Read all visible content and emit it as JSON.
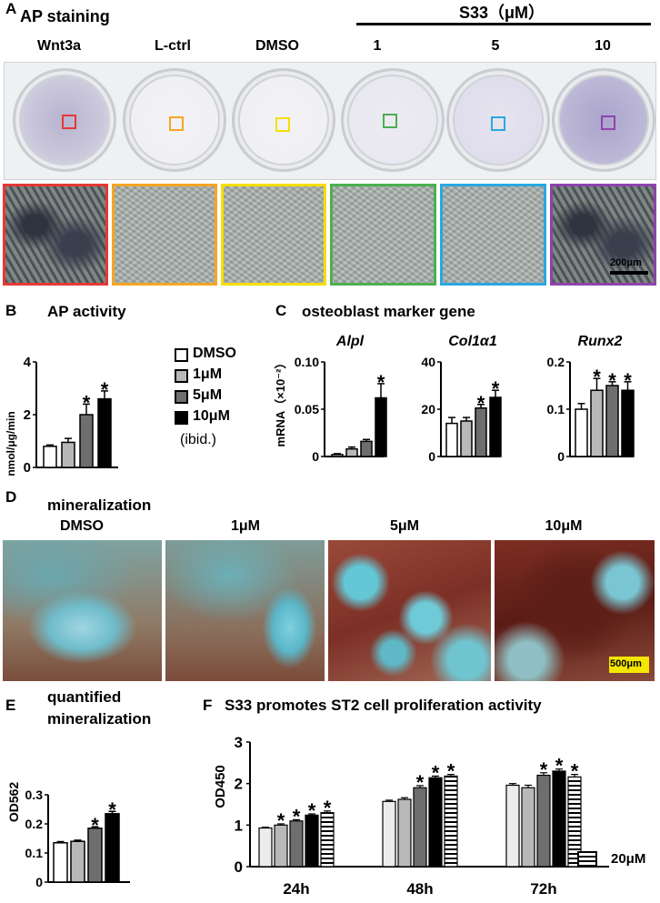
{
  "panelA": {
    "letter": "A",
    "title": "AP staining",
    "s33_label": "S33（μM）",
    "columns": [
      "Wnt3a",
      "L-ctrl",
      "DMSO",
      "1",
      "5",
      "10"
    ],
    "scale": "200μm",
    "roi_colors": [
      "#e53935",
      "#f5a623",
      "#f4e000",
      "#4caf50",
      "#29a8e0",
      "#8e44ad"
    ]
  },
  "panelB": {
    "letter": "B",
    "title": "AP activity",
    "ylabel": "nmol/μg/min",
    "legend": [
      "DMSO",
      "1μM",
      "5μM",
      "10μM",
      "(ibid.)"
    ]
  },
  "panelC": {
    "letter": "C",
    "title": "osteoblast marker gene",
    "ylabel": "mRNA（×10⁻²）",
    "genes": [
      "Alpl",
      "Col1α1",
      "Runx2"
    ]
  },
  "panelD": {
    "letter": "D",
    "title": "mineralization",
    "columns": [
      "DMSO",
      "1μM",
      "5μM",
      "10μM"
    ],
    "scale": "500μm"
  },
  "panelE": {
    "letter": "E",
    "title_line1": "quantified",
    "title_line2": "mineralization",
    "ylabel": "OD562"
  },
  "panelF": {
    "letter": "F",
    "title": "S33 promotes ST2 cell proliferation activity",
    "ylabel": "OD450",
    "legend_extra": "20μM"
  },
  "star": "*",
  "chart_data": [
    {
      "type": "bar",
      "id": "B",
      "categories": [
        "DMSO",
        "1μM",
        "5μM",
        "10μM"
      ],
      "values": [
        0.8,
        0.95,
        2.0,
        2.6
      ],
      "errors": [
        0.05,
        0.15,
        0.4,
        0.3
      ],
      "significant": [
        false,
        false,
        true,
        true
      ],
      "ylim": [
        0,
        4
      ],
      "yticks": [
        "0",
        "2",
        "4"
      ]
    },
    {
      "type": "bar",
      "id": "C-Alpl",
      "categories": [
        "DMSO",
        "1μM",
        "5μM",
        "10μM"
      ],
      "values": [
        0.002,
        0.008,
        0.016,
        0.062
      ],
      "errors": [
        0.001,
        0.002,
        0.002,
        0.015
      ],
      "significant": [
        false,
        false,
        false,
        true
      ],
      "ylim": [
        0,
        0.1
      ],
      "yticks": [
        "0",
        "0.05",
        "0.10"
      ]
    },
    {
      "type": "bar",
      "id": "C-Col1a1",
      "categories": [
        "DMSO",
        "1μM",
        "5μM",
        "10μM"
      ],
      "values": [
        14,
        15,
        20.5,
        25
      ],
      "errors": [
        2.5,
        1.5,
        1.5,
        3
      ],
      "significant": [
        false,
        false,
        true,
        true
      ],
      "ylim": [
        0,
        40
      ],
      "yticks": [
        "0",
        "20",
        "40"
      ]
    },
    {
      "type": "bar",
      "id": "C-Runx2",
      "categories": [
        "DMSO",
        "1μM",
        "5μM",
        "10μM"
      ],
      "values": [
        0.1,
        0.14,
        0.15,
        0.14
      ],
      "errors": [
        0.012,
        0.025,
        0.008,
        0.018
      ],
      "significant": [
        false,
        true,
        true,
        true
      ],
      "ylim": [
        0,
        0.2
      ],
      "yticks": [
        "0",
        "0.1",
        "0.2"
      ]
    },
    {
      "type": "bar",
      "id": "E",
      "categories": [
        "DMSO",
        "1μM",
        "5μM",
        "10μM"
      ],
      "values": [
        0.135,
        0.14,
        0.185,
        0.235
      ],
      "errors": [
        0.004,
        0.004,
        0.005,
        0.008
      ],
      "significant": [
        false,
        false,
        true,
        true
      ],
      "ylim": [
        0,
        0.3
      ],
      "yticks": [
        "0",
        "0.1",
        "0.2",
        "0.3"
      ]
    },
    {
      "type": "bar",
      "id": "F",
      "categories": [
        "24h",
        "48h",
        "72h"
      ],
      "series": [
        {
          "values": [
            0.93,
            1.57,
            1.96
          ]
        },
        {
          "values": [
            1.0,
            1.62,
            1.9
          ]
        },
        {
          "values": [
            1.1,
            1.9,
            2.2
          ]
        },
        {
          "values": [
            1.24,
            2.14,
            2.3
          ]
        },
        {
          "name": "20μM",
          "values": [
            1.3,
            2.18,
            2.16
          ]
        }
      ],
      "errors": [
        [
          0.02,
          0.03,
          0.04
        ],
        [
          0.03,
          0.04,
          0.06
        ],
        [
          0.03,
          0.05,
          0.06
        ],
        [
          0.03,
          0.04,
          0.05
        ],
        [
          0.04,
          0.04,
          0.06
        ]
      ],
      "significant": [
        [
          false,
          false,
          false
        ],
        [
          true,
          false,
          false
        ],
        [
          true,
          true,
          true
        ],
        [
          true,
          true,
          true
        ],
        [
          true,
          true,
          true
        ]
      ],
      "ylim": [
        0,
        3
      ],
      "yticks": [
        "0",
        "1",
        "2",
        "3"
      ]
    }
  ]
}
